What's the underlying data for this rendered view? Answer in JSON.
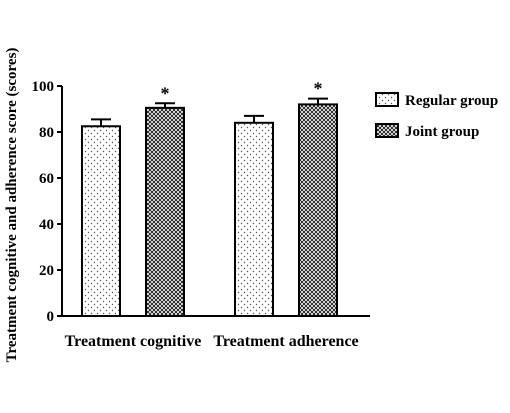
{
  "chart_data": {
    "type": "bar",
    "title": "",
    "xlabel": "",
    "ylabel": "Treatment cognitive and adherence score (scores)",
    "ylim": [
      0,
      100
    ],
    "yticks": [
      "0",
      "20",
      "40",
      "60",
      "80",
      "100"
    ],
    "categories": [
      "Treatment cognitive",
      "Treatment adherence"
    ],
    "series": [
      {
        "name": "Regular group",
        "pattern": "dots",
        "values": [
          82.5,
          84
        ],
        "errors": [
          3,
          3
        ]
      },
      {
        "name": "Joint group",
        "pattern": "crosshatch",
        "values": [
          90.5,
          92
        ],
        "errors": [
          2,
          2.5
        ]
      }
    ],
    "annotations": [
      "*",
      "*"
    ],
    "grid": false,
    "legend_position": "right"
  }
}
